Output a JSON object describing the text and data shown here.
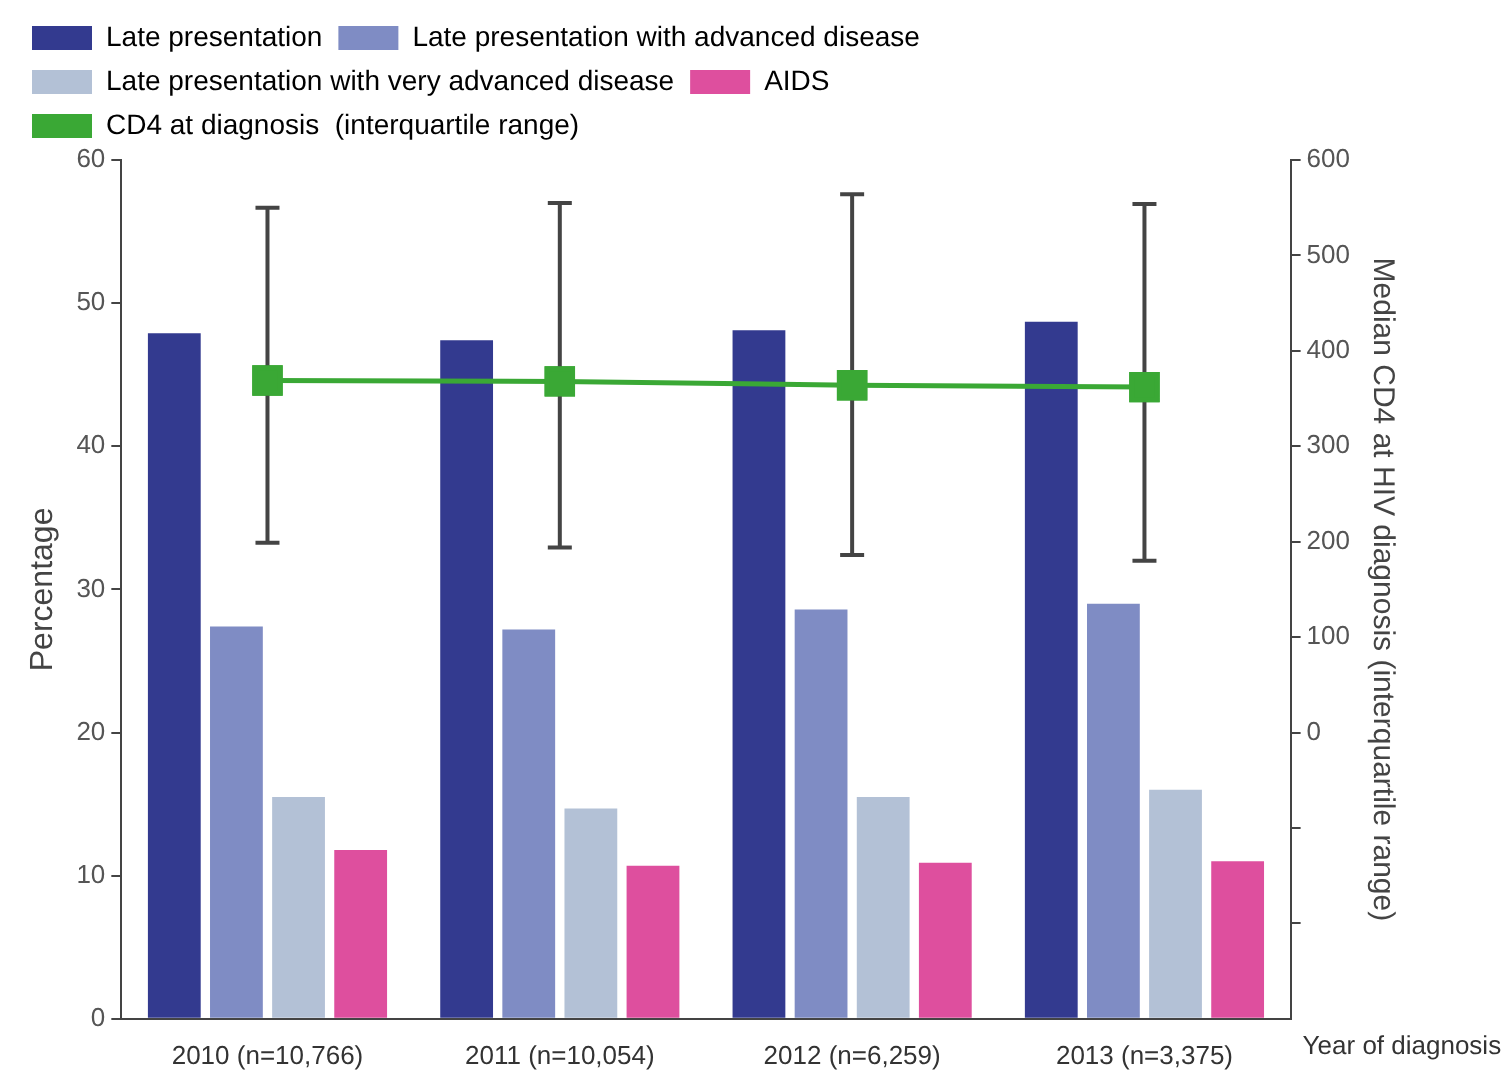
{
  "chart_data": {
    "type": "bar",
    "xlabel": "Year of diagnosis",
    "ylabel": "Percentage",
    "y2label": "Median CD4 at HIV diagnosis (interquartile range)",
    "categories": [
      "2010 (n=10,766)",
      "2011 (n=10,054)",
      "2012 (n=6,259)",
      "2013 (n=3,375)"
    ],
    "series": [
      {
        "name": "Late presentation",
        "color": "#333a8f",
        "values": [
          47.9,
          47.4,
          48.1,
          48.7
        ]
      },
      {
        "name": "Late presentation with advanced disease",
        "color": "#7f8cc4",
        "values": [
          27.4,
          27.2,
          28.6,
          29.0
        ]
      },
      {
        "name": "Late presentation with very advanced disease",
        "color": "#b3c1d6",
        "values": [
          15.5,
          14.7,
          15.5,
          16.0
        ]
      },
      {
        "name": "AIDS",
        "color": "#de4f9e",
        "values": [
          11.8,
          10.7,
          10.9,
          11.0
        ]
      },
      {
        "name": "CD4 at diagnosis  (interquartile range)",
        "type": "line",
        "axis": "y2",
        "color": "#3aa835",
        "marker": "square",
        "values": [
          369,
          368,
          364,
          362
        ],
        "errors": [
          [
            199,
            550
          ],
          [
            194,
            555
          ],
          [
            186,
            564
          ],
          [
            180,
            554
          ]
        ]
      }
    ],
    "ylim": [
      0,
      60
    ],
    "yticks": [
      0,
      10,
      20,
      30,
      40,
      50,
      60
    ],
    "y2lim": [
      -300,
      600
    ],
    "y2ticks": [
      {
        "value": -200,
        "label": null
      },
      {
        "value": -100,
        "label": null
      },
      0,
      100,
      200,
      300,
      400,
      500,
      600
    ],
    "grid": false,
    "legend": "top"
  }
}
